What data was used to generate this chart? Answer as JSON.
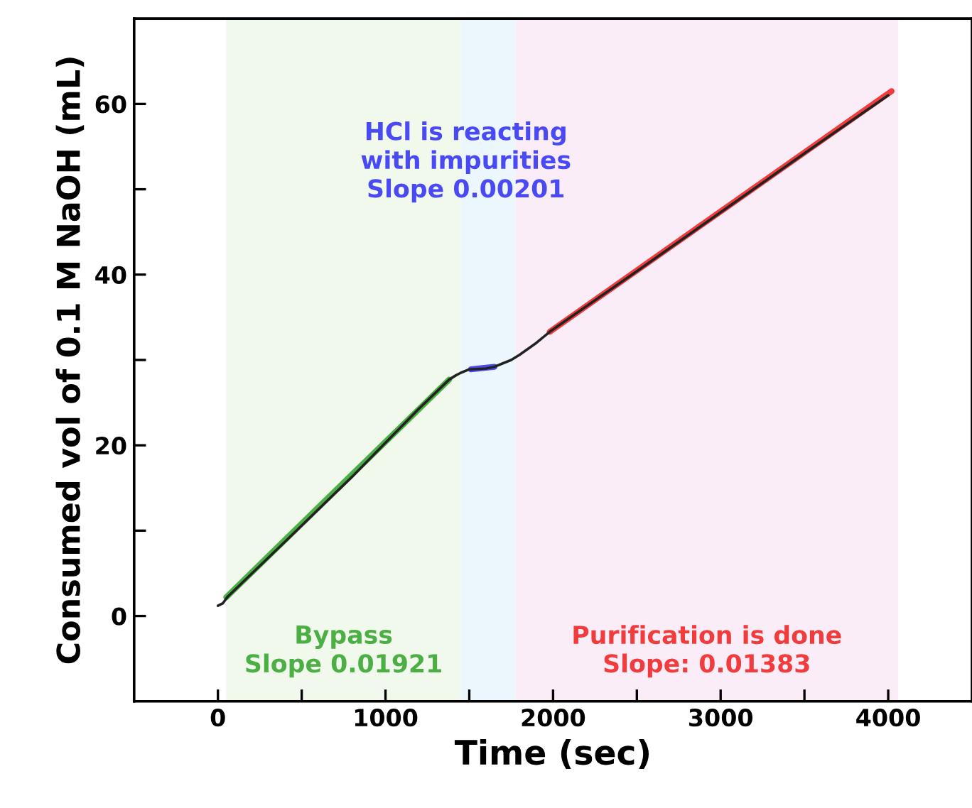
{
  "chart_data": {
    "type": "line",
    "xlabel": "Time (sec)",
    "ylabel": "Consumed vol of 0.1 M NaOH (mL)",
    "xlim": [
      -500,
      4500
    ],
    "ylim": [
      -10,
      70
    ],
    "xticks": [
      0,
      {
        "value": 500,
        "label": null
      },
      1000,
      {
        "value": 1500,
        "label": null
      },
      2000,
      {
        "value": 2500,
        "label": null
      },
      3000,
      {
        "value": 3500,
        "label": null
      },
      4000
    ],
    "yticks": [
      0,
      {
        "value": 10,
        "label": null
      },
      20,
      {
        "value": 30,
        "label": null
      },
      40,
      {
        "value": 50,
        "label": null
      },
      60
    ],
    "grid": false,
    "legend": false,
    "series": [
      {
        "color": "#222222",
        "x": [
          0,
          30,
          60,
          400,
          800,
          1200,
          1380,
          1420,
          1450,
          1500,
          1600,
          1650,
          1700,
          1750,
          1800,
          1900,
          1980,
          2500,
          3000,
          3500,
          4000
        ],
        "values": [
          1.2,
          1.5,
          2.3,
          8.7,
          16.3,
          24.3,
          27.7,
          28.2,
          28.5,
          28.9,
          29.0,
          29.2,
          29.6,
          30.0,
          30.6,
          32.0,
          33.3,
          40.4,
          47.3,
          54.2,
          61.0
        ]
      },
      {
        "color": "#4caf45",
        "x": [
          50,
          1380
        ],
        "values": [
          2.2,
          27.7
        ]
      },
      {
        "color": "#4a4af5",
        "x": [
          1510,
          1650
        ],
        "values": [
          28.9,
          29.2
        ]
      },
      {
        "color": "#f03c3c",
        "x": [
          1980,
          4020
        ],
        "values": [
          33.3,
          61.5
        ]
      }
    ],
    "bands": [
      {
        "axis": "x",
        "from": 50,
        "to": 1450,
        "color": "#f1f8ec",
        "label": "Bypass\nSlope 0.01921"
      },
      {
        "axis": "x",
        "from": 1450,
        "to": 1775,
        "color": "#ecf7fd",
        "label": "HCl is reacting\nwith impurities\nSlope 0.00201"
      },
      {
        "axis": "x",
        "from": 1775,
        "to": 4060,
        "color": "#fbedf8",
        "label": "Purification is done\nSlope: 0.01383"
      }
    ]
  }
}
